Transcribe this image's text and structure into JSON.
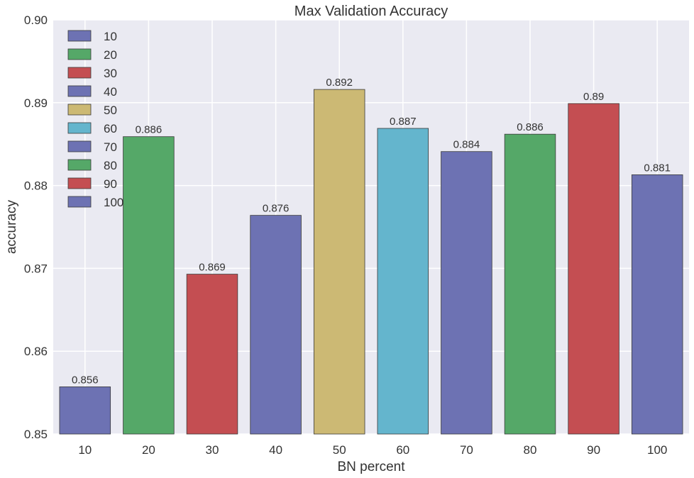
{
  "chart_data": {
    "type": "bar",
    "title": "Max Validation Accuracy",
    "xlabel": "BN percent",
    "ylabel": "accuracy",
    "ylim": [
      0.85,
      0.9
    ],
    "yticks": [
      0.85,
      0.86,
      0.87,
      0.88,
      0.89,
      0.9
    ],
    "ytick_labels": [
      "0.85",
      "0.86",
      "0.87",
      "0.88",
      "0.89",
      "0.90"
    ],
    "grid": true,
    "legend_position": "top-left",
    "categories": [
      "10",
      "20",
      "30",
      "40",
      "50",
      "60",
      "70",
      "80",
      "90",
      "100"
    ],
    "values": [
      0.8557,
      0.8859,
      0.8693,
      0.8764,
      0.8916,
      0.8869,
      0.8841,
      0.8862,
      0.8899,
      0.8813
    ],
    "value_labels": [
      "0.856",
      "0.886",
      "0.869",
      "0.876",
      "0.892",
      "0.887",
      "0.884",
      "0.886",
      "0.89",
      "0.881"
    ],
    "colors": [
      "#6d72b3",
      "#55a868",
      "#c44e52",
      "#6d72b3",
      "#ccb974",
      "#64b5cd",
      "#6d72b3",
      "#55a868",
      "#c44e52",
      "#6d72b3"
    ],
    "legend": [
      {
        "label": "10",
        "color": "#6d72b3"
      },
      {
        "label": "20",
        "color": "#55a868"
      },
      {
        "label": "30",
        "color": "#c44e52"
      },
      {
        "label": "40",
        "color": "#6d72b3"
      },
      {
        "label": "50",
        "color": "#ccb974"
      },
      {
        "label": "60",
        "color": "#64b5cd"
      },
      {
        "label": "70",
        "color": "#6d72b3"
      },
      {
        "label": "80",
        "color": "#55a868"
      },
      {
        "label": "90",
        "color": "#c44e52"
      },
      {
        "label": "100",
        "color": "#6d72b3"
      }
    ],
    "plot_background": "#eaeaf2",
    "grid_color": "#ffffff"
  }
}
